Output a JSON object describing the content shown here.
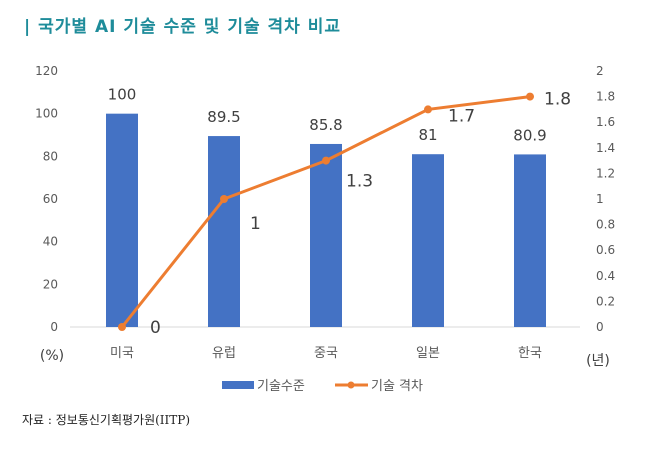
{
  "title": "| 국가별 AI 기술 수준 및 기술 격차 비교",
  "source": "자료 : 정보통신기획평가원(IITP)",
  "chart_data": {
    "type": "bar+line",
    "categories": [
      "미국",
      "유럽",
      "중국",
      "일본",
      "한국"
    ],
    "series": [
      {
        "name": "기술수준",
        "type": "bar",
        "axis": "left",
        "values": [
          100,
          89.5,
          85.8,
          81,
          80.9
        ],
        "color": "#4472c4"
      },
      {
        "name": "기술 격차",
        "type": "line",
        "axis": "right",
        "values": [
          0,
          1,
          1.3,
          1.7,
          1.8
        ],
        "color": "#ed7d31"
      }
    ],
    "y_left": {
      "label": "(%)",
      "lim": [
        0,
        120
      ],
      "ticks": [
        0,
        20,
        40,
        60,
        80,
        100,
        120
      ]
    },
    "y_right": {
      "label": "(년)",
      "lim": [
        0,
        2
      ],
      "ticks": [
        "0",
        "0.2",
        "0.4",
        "0.6",
        "0.8",
        "1",
        "1.2",
        "1.4",
        "1.6",
        "1.8",
        "2"
      ]
    },
    "legend": "bottom",
    "grid": false
  }
}
